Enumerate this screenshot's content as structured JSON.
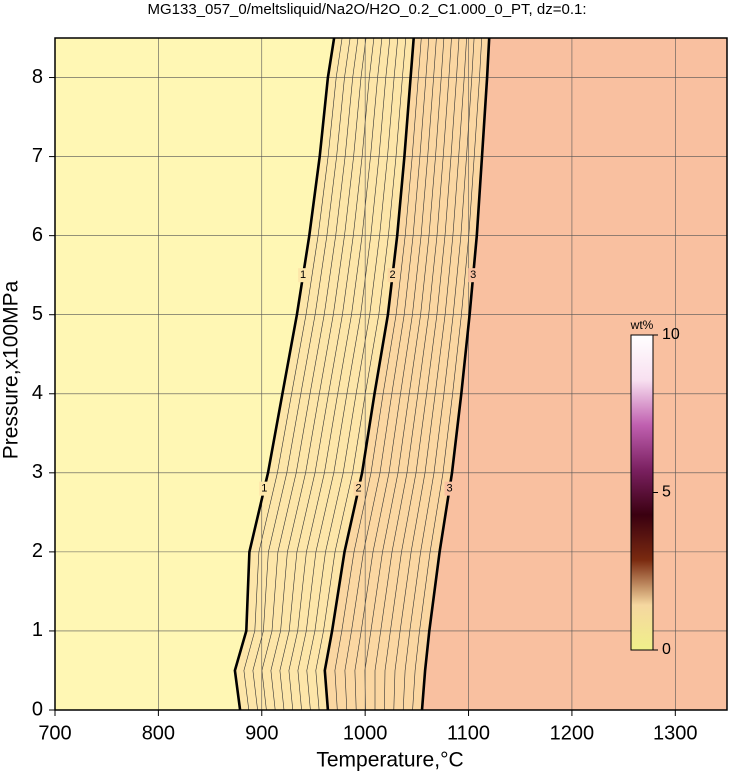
{
  "chart_data": {
    "type": "contour",
    "title": "MG133_057_0/meltsliquid/Na2O/H2O_0.2_C1.000_0_PT, dz=0.1:",
    "x_label": "Temperature,°C",
    "y_label": "Pressure,x100MPa",
    "xlim": [
      700,
      1350
    ],
    "xticks": [
      700,
      800,
      900,
      1000,
      1100,
      1200,
      1300
    ],
    "ylim": [
      0,
      8.5
    ],
    "yticks": [
      0,
      1,
      2,
      3,
      4,
      5,
      6,
      7,
      8
    ],
    "grid": true,
    "pressures": [
      0,
      0.5,
      1,
      2,
      3,
      4,
      5,
      6,
      7,
      8,
      8.5
    ],
    "series": [
      {
        "name": "1",
        "color": "#000000",
        "x": [
          879,
          874,
          885,
          888,
          906,
          920,
          934,
          946,
          956,
          964,
          970
        ]
      },
      {
        "name": "2",
        "color": "#000000",
        "x": [
          964,
          961,
          968,
          980,
          997,
          1009,
          1022,
          1031,
          1038,
          1044,
          1047
        ]
      },
      {
        "name": "3",
        "color": "#000000",
        "x": [
          1055,
          1058,
          1062,
          1072,
          1084,
          1093,
          1101,
          1108,
          1113,
          1118,
          1120
        ]
      }
    ],
    "region_colors": [
      "#fff7b4",
      "#fde6a9",
      "#fbd7a2",
      "#f9c0a0"
    ],
    "colorbar": {
      "label": "wt%",
      "ylim": [
        0,
        10
      ],
      "yticks": [
        0,
        5,
        10
      ],
      "colors": [
        "#f0f08a",
        "#f5d7a0",
        "#7a2a10",
        "#3a0010",
        "#7a2060",
        "#c060b0",
        "#f8e0f0",
        "#ffffff"
      ]
    }
  }
}
